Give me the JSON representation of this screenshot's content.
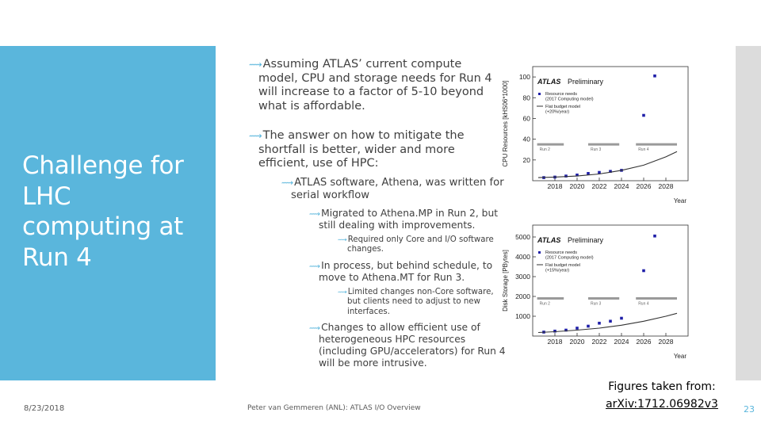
{
  "slide": {
    "title": "Challenge for LHC computing at Run 4",
    "bullets": [
      {
        "level": 1,
        "text": "Assuming ATLAS’ current compute model, CPU and storage needs for Run 4 will increase to a factor of 5-10 beyond what is affordable."
      },
      {
        "level": 1,
        "text": "The answer on how to mitigate the shortfall is better, wider and more efficient, use of HPC:"
      },
      {
        "level": 2,
        "text": "ATLAS software, Athena, was written for serial workflow"
      },
      {
        "level": 3,
        "text": "Migrated to Athena.MP in Run 2, but still dealing with improvements."
      },
      {
        "level": 4,
        "text": "Required only Core and I/O software changes."
      },
      {
        "level": 3,
        "text": "In process, but behind schedule, to move to Athena.MT for Run 3."
      },
      {
        "level": 4,
        "text": "Limited changes non-Core software, but clients need to adjust to new interfaces."
      },
      {
        "level": 3,
        "text": "Changes to allow efficient use of heterogeneous HPC resources (including GPU/accelerators) for Run 4 will be more intrusive."
      }
    ]
  },
  "footer": {
    "date": "8/23/2018",
    "center": "Peter van Gemmeren (ANL): ATLAS I/O Overview",
    "source_label": "Figures taken from:",
    "source_link": "arXiv:1712.06982v3",
    "page_number": "23"
  },
  "colors": {
    "accent": "#5ab6dc",
    "panel_gray": "#dcdcdc",
    "marker_blue": "#1f1fa8"
  },
  "chart_data": [
    {
      "type": "scatter",
      "brand": "ATLAS",
      "subtitle": "Preliminary",
      "ylabel": "CPU Resources [kHS06*1000]",
      "xlabel": "Year",
      "xlim": [
        2016,
        2030
      ],
      "ylim": [
        0,
        110
      ],
      "xticks": [
        2018,
        2020,
        2022,
        2024,
        2026,
        2028
      ],
      "yticks": [
        20,
        40,
        60,
        80,
        100
      ],
      "run_labels": [
        {
          "label": "Run 2",
          "x_start": 2016.4,
          "x_end": 2018.8
        },
        {
          "label": "Run 3",
          "x_start": 2021.0,
          "x_end": 2023.8
        },
        {
          "label": "Run 4",
          "x_start": 2025.3,
          "x_end": 2029.0
        }
      ],
      "run_band_y": 35,
      "series": [
        {
          "name": "Resource needs (2017 Computing model)",
          "marker": "square",
          "x": [
            2017,
            2018,
            2019,
            2020,
            2021,
            2022,
            2023,
            2024,
            2026,
            2027
          ],
          "y": [
            3,
            3.5,
            4.5,
            5.5,
            7,
            8,
            9,
            10,
            63,
            101
          ]
        },
        {
          "name": "Flat budget model (+20%/year)",
          "marker": "line",
          "x": [
            2016.5,
            2018,
            2020,
            2022,
            2024,
            2026,
            2028,
            2029
          ],
          "y": [
            3,
            3.5,
            4.5,
            6.5,
            10,
            15,
            23,
            28
          ]
        }
      ],
      "legend": [
        "Resource needs",
        "(2017 Computing model)",
        "Flat budget model",
        "(+20%/year)"
      ]
    },
    {
      "type": "scatter",
      "brand": "ATLAS",
      "subtitle": "Preliminary",
      "ylabel": "Disk Storage [PBytes]",
      "xlabel": "Year",
      "xlim": [
        2016,
        2030
      ],
      "ylim": [
        0,
        5600
      ],
      "xticks": [
        2018,
        2020,
        2022,
        2024,
        2026,
        2028
      ],
      "yticks": [
        1000,
        2000,
        3000,
        4000,
        5000
      ],
      "run_labels": [
        {
          "label": "Run 2",
          "x_start": 2016.4,
          "x_end": 2018.8
        },
        {
          "label": "Run 3",
          "x_start": 2021.0,
          "x_end": 2023.8
        },
        {
          "label": "Run 4",
          "x_start": 2025.3,
          "x_end": 2029.0
        }
      ],
      "run_band_y": 1900,
      "series": [
        {
          "name": "Resource needs (2017 Computing model)",
          "marker": "square",
          "x": [
            2017,
            2018,
            2019,
            2020,
            2021,
            2022,
            2023,
            2024,
            2026,
            2027
          ],
          "y": [
            200,
            250,
            300,
            400,
            500,
            650,
            750,
            900,
            3300,
            5050
          ]
        },
        {
          "name": "Flat budget model (+15%/year)",
          "marker": "line",
          "x": [
            2016.5,
            2018,
            2020,
            2022,
            2024,
            2026,
            2028,
            2029
          ],
          "y": [
            180,
            220,
            300,
            400,
            550,
            750,
            1000,
            1150
          ]
        }
      ],
      "legend": [
        "Resource needs",
        "(2017 Computing model)",
        "Flat budget model",
        "(+15%/year)"
      ]
    }
  ]
}
